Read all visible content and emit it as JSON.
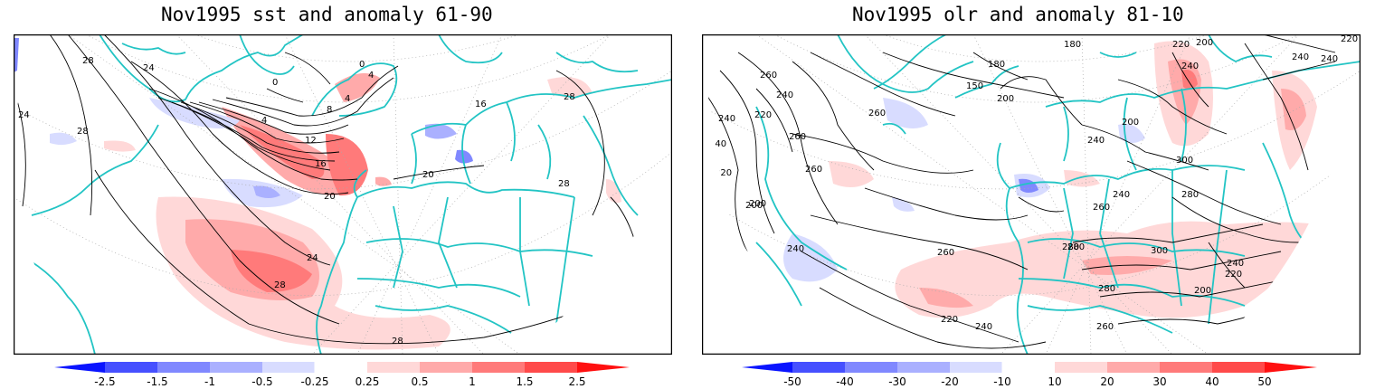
{
  "panels": [
    {
      "title": "Nov1995 sst and anomaly 61-90",
      "contour_labels": [
        "28",
        "24",
        "24",
        "28",
        "0",
        "0",
        "4",
        "4",
        "8",
        "4",
        "12",
        "16",
        "20",
        "28",
        "24",
        "28",
        "28",
        "20",
        "28",
        "16"
      ],
      "colorbar": {
        "ticks": [
          "-2.5",
          "-1.5",
          "-1",
          "-0.5",
          "-0.25",
          "0.25",
          "0.5",
          "1",
          "1.5",
          "2.5"
        ],
        "colors": [
          "#0a14ff",
          "#4650ff",
          "#8088ff",
          "#aab0ff",
          "#d8dcff",
          "#ffffff",
          "#ffd8d8",
          "#ffaaaa",
          "#ff7a7a",
          "#ff4a4a",
          "#ff1010"
        ]
      }
    },
    {
      "title": "Nov1995 olr and anomaly 81-10",
      "contour_labels": [
        "180",
        "220",
        "200",
        "240",
        "260",
        "240",
        "150",
        "180",
        "200",
        "260",
        "220",
        "240",
        "240",
        "220",
        "200",
        "240",
        "220",
        "240",
        "200",
        "240",
        "260",
        "260",
        "300",
        "280",
        "240",
        "260",
        "280",
        "300",
        "240",
        "220",
        "200",
        "280",
        "260",
        "220",
        "240",
        "260",
        "280",
        "200",
        "240"
      ],
      "colorbar": {
        "ticks": [
          "-50",
          "-40",
          "-30",
          "-20",
          "-10",
          "10",
          "20",
          "30",
          "40",
          "50"
        ],
        "colors": [
          "#0a14ff",
          "#4650ff",
          "#8088ff",
          "#aab0ff",
          "#d8dcff",
          "#ffffff",
          "#ffd8d8",
          "#ffaaaa",
          "#ff7a7a",
          "#ff4a4a",
          "#ff1010"
        ]
      }
    }
  ]
}
